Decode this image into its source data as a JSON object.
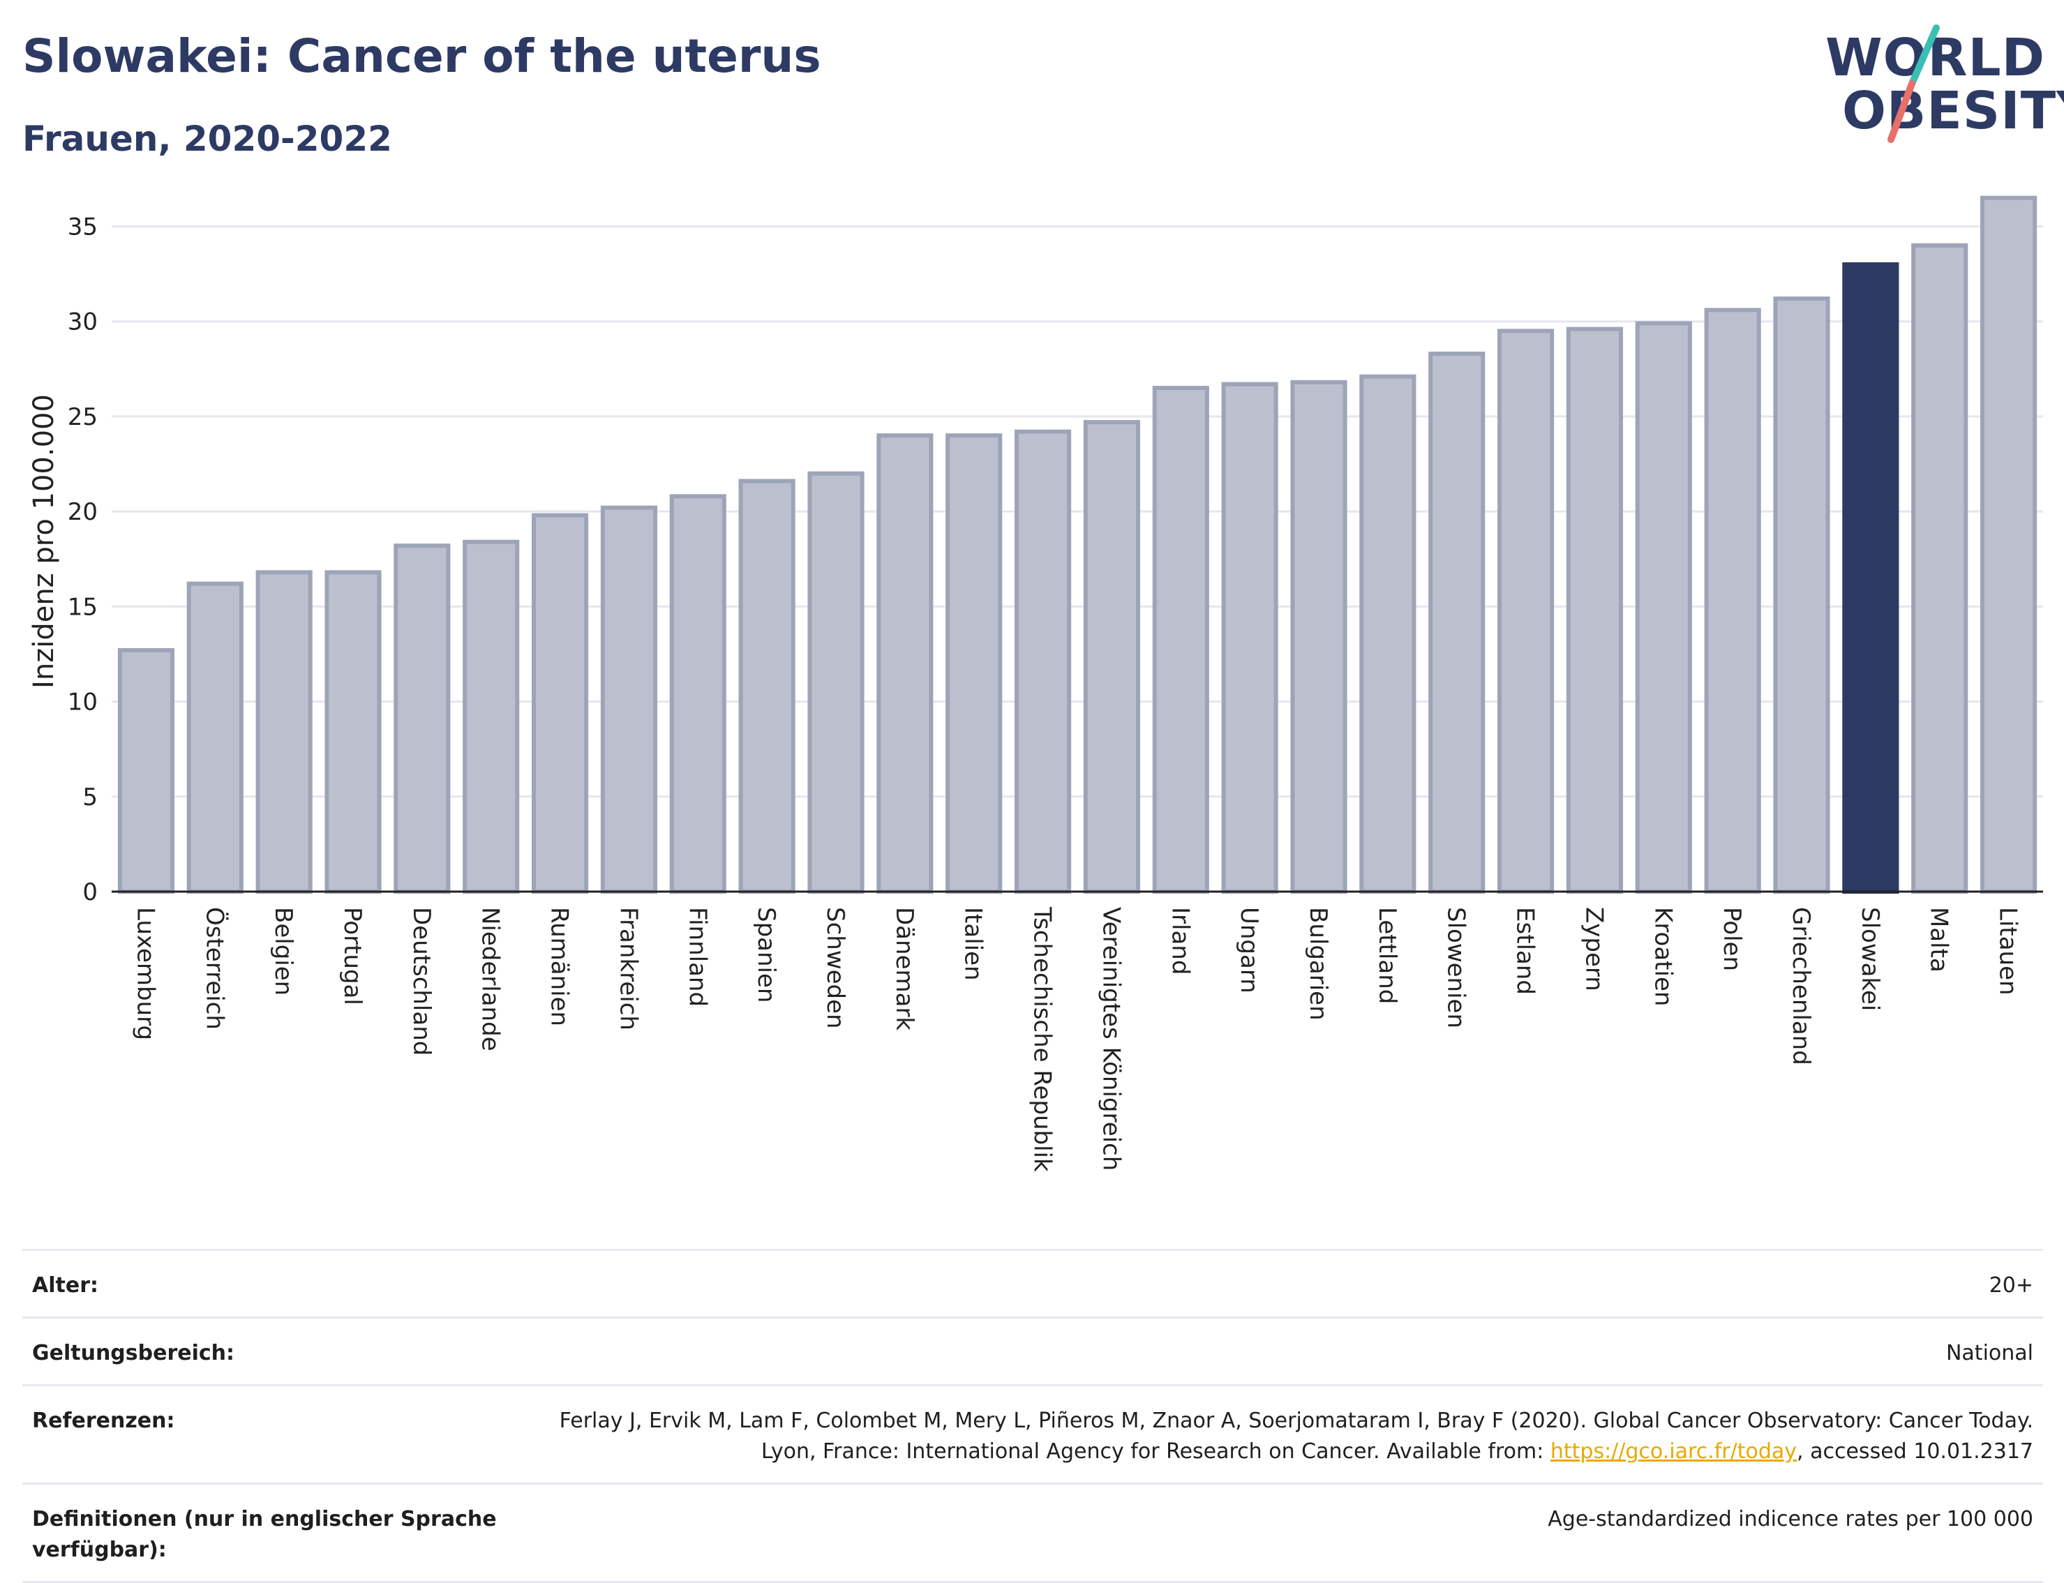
{
  "header": {
    "title": "Slowakei: Cancer of the uterus",
    "subtitle": "Frauen, 2020-2022"
  },
  "logo": {
    "line1": "WORLD",
    "line2": "OBESITY",
    "accent_colors": [
      "#3bbfb3",
      "#e8706a"
    ]
  },
  "colors": {
    "bar": "#bcc0ce",
    "bar_border": "#9ea4b8",
    "highlight": "#2d3a64",
    "grid": "#e6e6ee"
  },
  "chart_data": {
    "type": "bar",
    "title": "Slowakei: Cancer of the uterus",
    "subtitle": "Frauen, 2020-2022",
    "xlabel": "",
    "ylabel": "Inzidenz pro 100.000",
    "ylim": [
      0,
      37
    ],
    "yticks": [
      0,
      5,
      10,
      15,
      20,
      25,
      30,
      35
    ],
    "grid": true,
    "highlight": "Slowakei",
    "categories": [
      "Luxemburg",
      "Österreich",
      "Belgien",
      "Portugal",
      "Deutschland",
      "Niederlande",
      "Rumänien",
      "Frankreich",
      "Finnland",
      "Spanien",
      "Schweden",
      "Dänemark",
      "Italien",
      "Tschechische Republik",
      "Vereinigtes Königreich",
      "Irland",
      "Ungarn",
      "Bulgarien",
      "Lettland",
      "Slowenien",
      "Estland",
      "Zypern",
      "Kroatien",
      "Polen",
      "Griechenland",
      "Slowakei",
      "Malta",
      "Litauen"
    ],
    "values": [
      12.7,
      16.2,
      16.8,
      16.8,
      18.2,
      18.4,
      19.8,
      20.2,
      20.8,
      21.6,
      22.0,
      24.0,
      24.0,
      24.2,
      24.7,
      26.5,
      26.7,
      26.8,
      27.1,
      28.3,
      29.5,
      29.6,
      29.9,
      30.6,
      31.2,
      33.0,
      34.0,
      36.5
    ]
  },
  "info": {
    "rows": [
      {
        "label": "Alter:",
        "value": "20+"
      },
      {
        "label": "Geltungsbereich:",
        "value": "National"
      },
      {
        "label": "Referenzen:",
        "value_pre": "Ferlay J, Ervik M, Lam F, Colombet M, Mery L, Piñeros M, Znaor A, Soerjomataram I, Bray F (2020). Global Cancer Observatory: Cancer Today. Lyon, France: International Agency for Research on Cancer. Available from: ",
        "link": "https://gco.iarc.fr/today",
        "value_post": ", accessed 10.01.2317"
      },
      {
        "label": "Definitionen (nur in englischer Sprache verfügbar):",
        "value": "Age-standardized indicence rates per 100 000"
      }
    ]
  }
}
